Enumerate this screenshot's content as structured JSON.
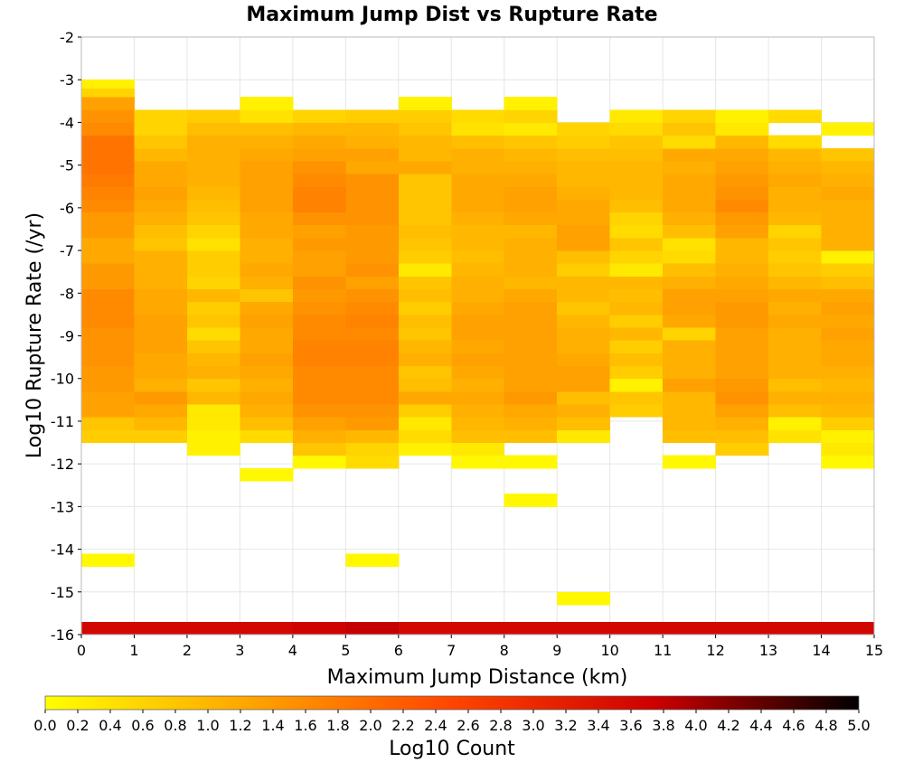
{
  "chart_data": {
    "type": "heatmap",
    "title": "Maximum Jump Dist vs Rupture Rate",
    "xlabel": "Maximum Jump Distance (km)",
    "ylabel": "Log10 Rupture Rate (/yr)",
    "xlim": [
      0,
      15
    ],
    "ylim": [
      -16,
      -2
    ],
    "x_ticks": [
      "0",
      "1",
      "2",
      "3",
      "4",
      "5",
      "6",
      "7",
      "8",
      "9",
      "10",
      "11",
      "12",
      "13",
      "14",
      "15"
    ],
    "y_ticks": [
      "-2",
      "-3",
      "-4",
      "-5",
      "-6",
      "-7",
      "-8",
      "-9",
      "-10",
      "-11",
      "-12",
      "-13",
      "-14",
      "-15",
      "-16"
    ],
    "grid": true,
    "x_bin_width": 1,
    "y_bin_height": 0.28,
    "colorbar": {
      "label": "Log10 Count",
      "range": [
        0,
        5
      ],
      "ticks": [
        "0.0",
        "0.2",
        "0.4",
        "0.6",
        "0.8",
        "1.0",
        "1.2",
        "1.4",
        "1.6",
        "1.8",
        "2.0",
        "2.2",
        "2.4",
        "2.6",
        "2.8",
        "3.0",
        "3.2",
        "3.4",
        "3.6",
        "3.8",
        "4.0",
        "4.2",
        "4.4",
        "4.6",
        "4.8",
        "5.0"
      ],
      "colors": [
        "#ffff00",
        "#ffa500",
        "#ff4500",
        "#cc0000",
        "#000000"
      ]
    },
    "x_bins": [
      0.5,
      1.5,
      2.5,
      3.5,
      4.5,
      5.5,
      6.5,
      7.5,
      8.5,
      9.5,
      10.5,
      11.5,
      12.5,
      13.5,
      14.5
    ],
    "cells": [
      [
        -16.0,
        -15.7,
        [
          3.6,
          3.6,
          3.6,
          3.6,
          3.7,
          3.8,
          3.6,
          3.6,
          3.6,
          3.6,
          3.6,
          3.6,
          3.6,
          3.6,
          3.6
        ]
      ],
      [
        -15.3,
        -15.0,
        [
          null,
          null,
          null,
          null,
          null,
          null,
          null,
          null,
          null,
          0.1,
          null,
          null,
          null,
          null,
          null
        ]
      ],
      [
        -14.4,
        -14.1,
        [
          0.1,
          null,
          null,
          null,
          null,
          0.1,
          null,
          null,
          null,
          null,
          null,
          null,
          null,
          null,
          null
        ]
      ],
      [
        -13.0,
        -12.7,
        [
          null,
          null,
          null,
          null,
          null,
          null,
          null,
          null,
          0.1,
          null,
          null,
          null,
          null,
          null,
          null
        ]
      ],
      [
        -12.4,
        -12.1,
        [
          null,
          null,
          null,
          0.1,
          null,
          null,
          null,
          null,
          null,
          null,
          null,
          null,
          null,
          null,
          null
        ]
      ],
      [
        -12.1,
        -11.8,
        [
          null,
          null,
          null,
          null,
          0.1,
          0.5,
          null,
          0.1,
          0.1,
          null,
          null,
          0.1,
          null,
          null,
          0.1
        ]
      ],
      [
        -11.8,
        -11.5,
        [
          null,
          null,
          0.2,
          null,
          0.8,
          0.6,
          0.2,
          0.3,
          null,
          null,
          null,
          null,
          0.7,
          null,
          0.3
        ]
      ],
      [
        -11.5,
        -11.2,
        [
          0.7,
          0.7,
          0.2,
          0.5,
          1.1,
          1.0,
          0.5,
          0.9,
          0.9,
          0.3,
          null,
          0.9,
          0.9,
          0.4,
          0.2
        ]
      ],
      [
        -11.2,
        -10.9,
        [
          0.8,
          1.0,
          0.3,
          0.9,
          1.3,
          1.4,
          0.3,
          1.0,
          1.1,
          0.9,
          null,
          1.0,
          1.1,
          0.2,
          0.7
        ]
      ],
      [
        -10.9,
        -10.6,
        [
          1.3,
          1.2,
          0.3,
          1.1,
          1.5,
          1.5,
          0.7,
          1.1,
          1.2,
          1.1,
          0.7,
          1.0,
          1.3,
          0.9,
          1.0
        ]
      ],
      [
        -10.6,
        -10.3,
        [
          1.3,
          1.4,
          1.0,
          1.2,
          1.6,
          1.6,
          1.2,
          1.2,
          1.4,
          0.9,
          0.8,
          1.0,
          1.5,
          1.1,
          1.1
        ]
      ],
      [
        -10.3,
        -10.0,
        [
          1.4,
          1.1,
          0.8,
          1.1,
          1.6,
          1.6,
          0.9,
          1.1,
          1.3,
          1.3,
          0.2,
          1.3,
          1.4,
          0.9,
          1.0
        ]
      ],
      [
        -10.0,
        -9.7,
        [
          1.4,
          1.2,
          1.1,
          1.2,
          1.6,
          1.6,
          0.8,
          1.2,
          1.3,
          1.3,
          0.7,
          1.1,
          1.3,
          1.1,
          1.1
        ]
      ],
      [
        -9.7,
        -9.4,
        [
          1.5,
          1.2,
          1.0,
          1.3,
          1.7,
          1.7,
          1.1,
          1.3,
          1.3,
          1.2,
          0.9,
          1.1,
          1.3,
          1.1,
          1.2
        ]
      ],
      [
        -9.4,
        -9.1,
        [
          1.5,
          1.3,
          0.8,
          1.2,
          1.7,
          1.7,
          1.0,
          1.2,
          1.3,
          1.1,
          0.7,
          1.1,
          1.3,
          1.1,
          1.2
        ]
      ],
      [
        -9.1,
        -8.8,
        [
          1.5,
          1.3,
          0.5,
          1.2,
          1.6,
          1.6,
          0.8,
          1.3,
          1.3,
          1.1,
          1.0,
          0.6,
          1.3,
          1.1,
          1.3
        ]
      ],
      [
        -8.8,
        -8.5,
        [
          1.6,
          1.3,
          0.8,
          1.3,
          1.6,
          1.7,
          0.9,
          1.3,
          1.3,
          1.0,
          0.7,
          1.2,
          1.4,
          1.2,
          1.2
        ]
      ],
      [
        -8.5,
        -8.2,
        [
          1.6,
          1.2,
          0.7,
          1.2,
          1.5,
          1.6,
          0.7,
          1.2,
          1.3,
          0.8,
          1.0,
          1.3,
          1.4,
          1.1,
          1.3
        ]
      ],
      [
        -8.2,
        -7.9,
        [
          1.6,
          1.2,
          1.0,
          0.8,
          1.4,
          1.5,
          0.9,
          1.1,
          1.2,
          1.0,
          0.9,
          1.3,
          1.3,
          1.2,
          1.2
        ]
      ],
      [
        -7.9,
        -7.6,
        [
          1.4,
          1.1,
          0.6,
          1.1,
          1.5,
          1.3,
          0.8,
          1.1,
          1.0,
          1.0,
          1.0,
          1.1,
          1.2,
          1.0,
          0.9
        ]
      ],
      [
        -7.6,
        -7.3,
        [
          1.4,
          1.1,
          0.7,
          1.2,
          1.3,
          1.5,
          0.3,
          1.0,
          1.1,
          0.7,
          0.3,
          0.9,
          1.1,
          0.8,
          0.7
        ]
      ],
      [
        -7.3,
        -7.0,
        [
          1.2,
          1.1,
          0.7,
          1.1,
          1.3,
          1.4,
          0.7,
          0.9,
          1.1,
          0.9,
          0.6,
          0.5,
          1.0,
          0.7,
          0.2
        ]
      ],
      [
        -7.0,
        -6.7,
        [
          1.2,
          0.8,
          0.4,
          1.1,
          1.4,
          1.4,
          0.8,
          1.0,
          1.1,
          1.3,
          0.8,
          0.4,
          1.0,
          0.8,
          1.1
        ]
      ],
      [
        -6.7,
        -6.4,
        [
          1.4,
          0.9,
          0.6,
          1.2,
          1.3,
          1.4,
          0.9,
          1.0,
          1.0,
          1.3,
          0.5,
          0.9,
          1.3,
          0.6,
          1.1
        ]
      ],
      [
        -6.4,
        -6.1,
        [
          1.4,
          1.1,
          0.8,
          1.2,
          1.5,
          1.5,
          0.8,
          1.1,
          1.2,
          1.2,
          0.6,
          1.1,
          1.4,
          1.0,
          1.1
        ]
      ],
      [
        -6.1,
        -5.8,
        [
          1.6,
          1.2,
          0.9,
          1.3,
          1.7,
          1.5,
          0.8,
          1.2,
          1.3,
          1.2,
          0.9,
          1.2,
          1.6,
          1.1,
          1.1
        ]
      ],
      [
        -5.8,
        -5.5,
        [
          1.7,
          1.3,
          1.0,
          1.3,
          1.7,
          1.5,
          0.8,
          1.2,
          1.3,
          1.1,
          1.0,
          1.2,
          1.5,
          1.1,
          1.2
        ]
      ],
      [
        -5.5,
        -5.2,
        [
          1.8,
          1.2,
          1.1,
          1.3,
          1.6,
          1.5,
          0.8,
          1.2,
          1.2,
          1.0,
          1.0,
          1.2,
          1.4,
          1.2,
          1.1
        ]
      ],
      [
        -5.2,
        -4.9,
        [
          1.9,
          1.2,
          1.1,
          1.3,
          1.5,
          1.2,
          1.2,
          1.1,
          1.1,
          1.0,
          1.0,
          1.1,
          1.3,
          1.1,
          1.0
        ]
      ],
      [
        -4.9,
        -4.6,
        [
          1.9,
          1.0,
          1.1,
          1.2,
          1.3,
          1.3,
          1.0,
          1.1,
          1.0,
          0.9,
          0.9,
          1.2,
          1.2,
          1.0,
          0.8
        ]
      ],
      [
        -4.6,
        -4.3,
        [
          1.9,
          0.8,
          1.1,
          1.1,
          1.2,
          1.1,
          1.0,
          0.9,
          0.8,
          0.7,
          0.8,
          0.5,
          1.0,
          0.5,
          null
        ]
      ],
      [
        -4.3,
        -4.0,
        [
          1.6,
          0.6,
          0.9,
          0.9,
          1.0,
          1.0,
          0.8,
          0.4,
          0.3,
          0.6,
          0.5,
          0.8,
          0.3,
          null,
          0.2
        ]
      ],
      [
        -4.0,
        -3.7,
        [
          1.5,
          0.6,
          0.7,
          0.4,
          0.6,
          0.7,
          0.7,
          0.5,
          0.6,
          null,
          0.3,
          0.6,
          0.2,
          0.5,
          null
        ]
      ],
      [
        -3.7,
        -3.4,
        [
          1.3,
          null,
          null,
          0.2,
          null,
          null,
          0.2,
          null,
          0.2,
          null,
          null,
          null,
          null,
          null,
          null
        ]
      ],
      [
        -3.4,
        -3.0,
        [
          0.6,
          null,
          null,
          null,
          null,
          null,
          null,
          null,
          null,
          null,
          null,
          null,
          null,
          null,
          null
        ]
      ],
      [
        -3.2,
        -3.0,
        [
          0.2,
          null,
          null,
          null,
          null,
          null,
          null,
          null,
          null,
          null,
          null,
          null,
          null,
          null,
          null
        ]
      ]
    ]
  }
}
